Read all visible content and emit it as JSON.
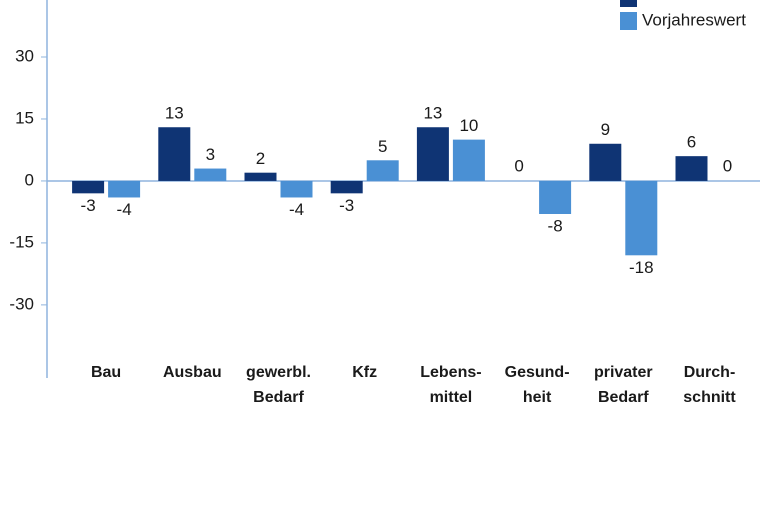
{
  "chart_data": {
    "type": "bar",
    "categories": [
      "Bau",
      "Ausbau",
      "gewerbl.\nBedarf",
      "Kfz",
      "Lebens-\nmittel",
      "Gesund-\nheit",
      "privater\nBedarf",
      "Durch-\nschnitt"
    ],
    "series": [
      {
        "name": null,
        "color": "#0f3474",
        "values": [
          -3,
          13,
          2,
          -3,
          13,
          0,
          9,
          6
        ]
      },
      {
        "name": "Vorjahreswert",
        "color": "#4a90d4",
        "values": [
          -4,
          3,
          -4,
          5,
          10,
          -8,
          -18,
          0
        ]
      }
    ],
    "ylim": [
      -47.7,
      43.8
    ],
    "yticks": [
      30,
      15,
      0,
      -15,
      -30
    ]
  }
}
